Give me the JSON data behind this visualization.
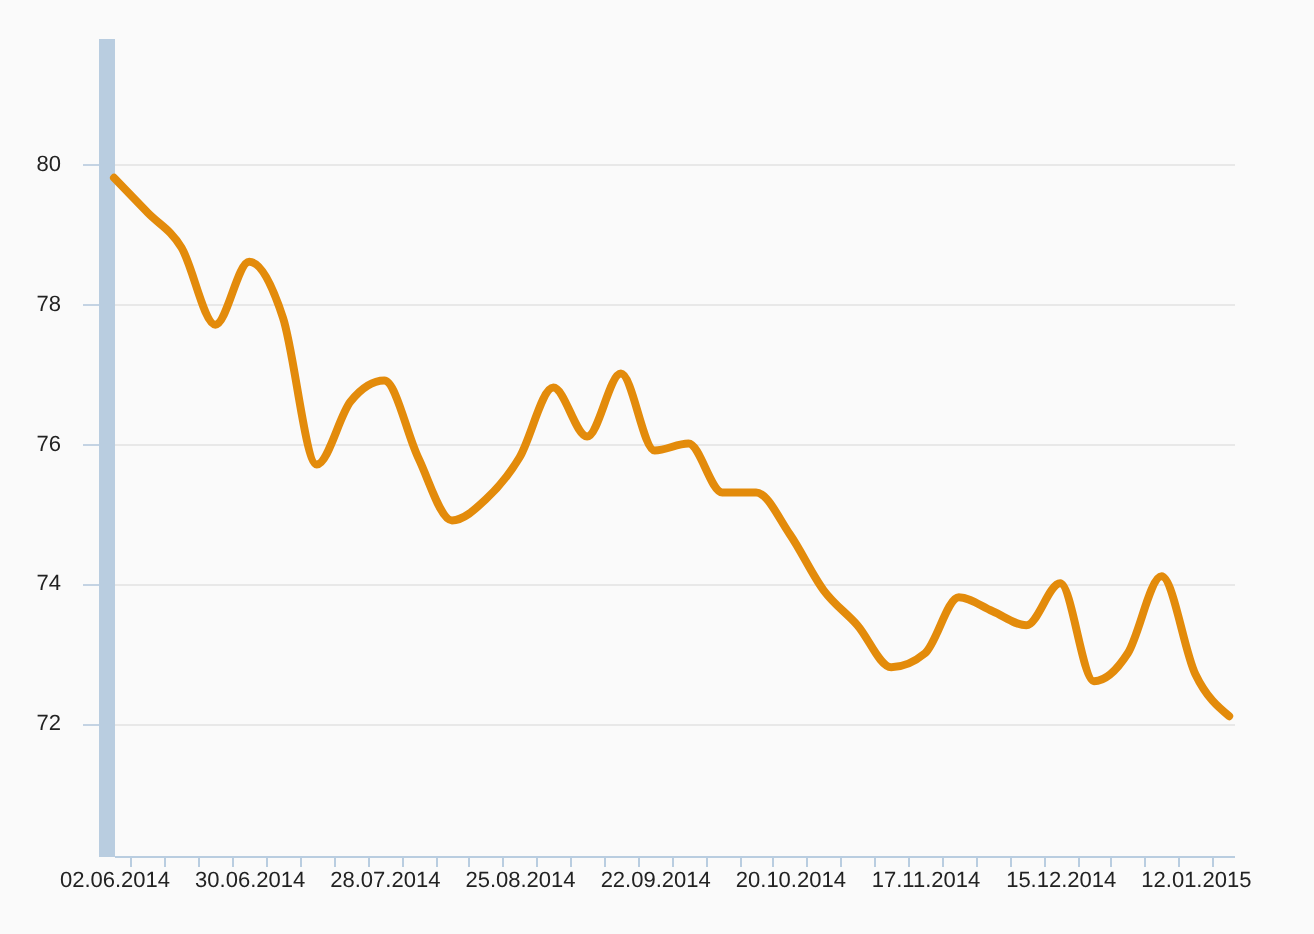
{
  "chart_data": {
    "type": "line",
    "x": [
      "2014-06-02",
      "2014-06-09",
      "2014-06-16",
      "2014-06-23",
      "2014-06-30",
      "2014-07-07",
      "2014-07-14",
      "2014-07-21",
      "2014-07-28",
      "2014-08-04",
      "2014-08-11",
      "2014-08-18",
      "2014-08-25",
      "2014-09-01",
      "2014-09-08",
      "2014-09-15",
      "2014-09-22",
      "2014-09-29",
      "2014-10-06",
      "2014-10-13",
      "2014-10-20",
      "2014-10-27",
      "2014-11-03",
      "2014-11-10",
      "2014-11-17",
      "2014-11-24",
      "2014-12-01",
      "2014-12-08",
      "2014-12-15",
      "2014-12-22",
      "2014-12-29",
      "2015-01-05",
      "2015-01-12",
      "2015-01-19"
    ],
    "series": [
      {
        "color": "#e38b0b",
        "values": [
          79.8,
          79.3,
          78.8,
          77.7,
          78.6,
          77.8,
          75.7,
          76.6,
          76.9,
          75.8,
          74.9,
          75.2,
          75.8,
          76.8,
          76.1,
          77.0,
          75.9,
          76.0,
          75.3,
          75.3,
          74.7,
          73.9,
          73.4,
          72.8,
          73.0,
          73.8,
          73.6,
          73.4,
          74.0,
          72.6,
          73.0,
          74.1,
          72.7,
          72.1
        ]
      }
    ],
    "xlim": [
      "2014-06-02",
      "2015-01-20"
    ],
    "xticks": [
      {
        "value": "2014-06-02",
        "label": "02.06.2014"
      },
      {
        "value": "2014-06-30",
        "label": "30.06.2014"
      },
      {
        "value": "2014-07-28",
        "label": "28.07.2014"
      },
      {
        "value": "2014-08-25",
        "label": "25.08.2014"
      },
      {
        "value": "2014-09-22",
        "label": "22.09.2014"
      },
      {
        "value": "2014-10-20",
        "label": "20.10.2014"
      },
      {
        "value": "2014-11-17",
        "label": "17.11.2014"
      },
      {
        "value": "2014-12-15",
        "label": "15.12.2014"
      },
      {
        "value": "2015-01-12",
        "label": "12.01.2015"
      },
      {
        "value": "2014-06-05T12:00",
        "label": null
      },
      {
        "value": "2014-06-12T12:00",
        "label": null
      },
      {
        "value": "2014-06-19T12:00",
        "label": null
      },
      {
        "value": "2014-06-26T12:00",
        "label": null
      },
      {
        "value": "2014-07-03T12:00",
        "label": null
      },
      {
        "value": "2014-07-10T12:00",
        "label": null
      },
      {
        "value": "2014-07-17T12:00",
        "label": null
      },
      {
        "value": "2014-07-24T12:00",
        "label": null
      },
      {
        "value": "2014-07-31T12:00",
        "label": null
      },
      {
        "value": "2014-08-07T12:00",
        "label": null
      },
      {
        "value": "2014-08-14T12:00",
        "label": null
      },
      {
        "value": "2014-08-21T12:00",
        "label": null
      },
      {
        "value": "2014-08-28T12:00",
        "label": null
      },
      {
        "value": "2014-09-04T12:00",
        "label": null
      },
      {
        "value": "2014-09-11T12:00",
        "label": null
      },
      {
        "value": "2014-09-18T12:00",
        "label": null
      },
      {
        "value": "2014-09-25T12:00",
        "label": null
      },
      {
        "value": "2014-10-02T12:00",
        "label": null
      },
      {
        "value": "2014-10-09T12:00",
        "label": null
      },
      {
        "value": "2014-10-16T12:00",
        "label": null
      },
      {
        "value": "2014-10-23T12:00",
        "label": null
      },
      {
        "value": "2014-10-30T12:00",
        "label": null
      },
      {
        "value": "2014-11-06T12:00",
        "label": null
      },
      {
        "value": "2014-11-13T12:00",
        "label": null
      },
      {
        "value": "2014-11-20T12:00",
        "label": null
      },
      {
        "value": "2014-11-27T12:00",
        "label": null
      },
      {
        "value": "2014-12-04T12:00",
        "label": null
      },
      {
        "value": "2014-12-11T12:00",
        "label": null
      },
      {
        "value": "2014-12-18T12:00",
        "label": null
      },
      {
        "value": "2014-12-25T12:00",
        "label": null
      },
      {
        "value": "2015-01-01T12:00",
        "label": null
      },
      {
        "value": "2015-01-08T12:00",
        "label": null
      },
      {
        "value": "2015-01-15T12:00",
        "label": null
      }
    ],
    "ylim": [
      70.1,
      81.8
    ],
    "yticks": [
      72,
      74,
      76,
      78,
      80
    ],
    "grid": "y",
    "line_style": "solid"
  }
}
